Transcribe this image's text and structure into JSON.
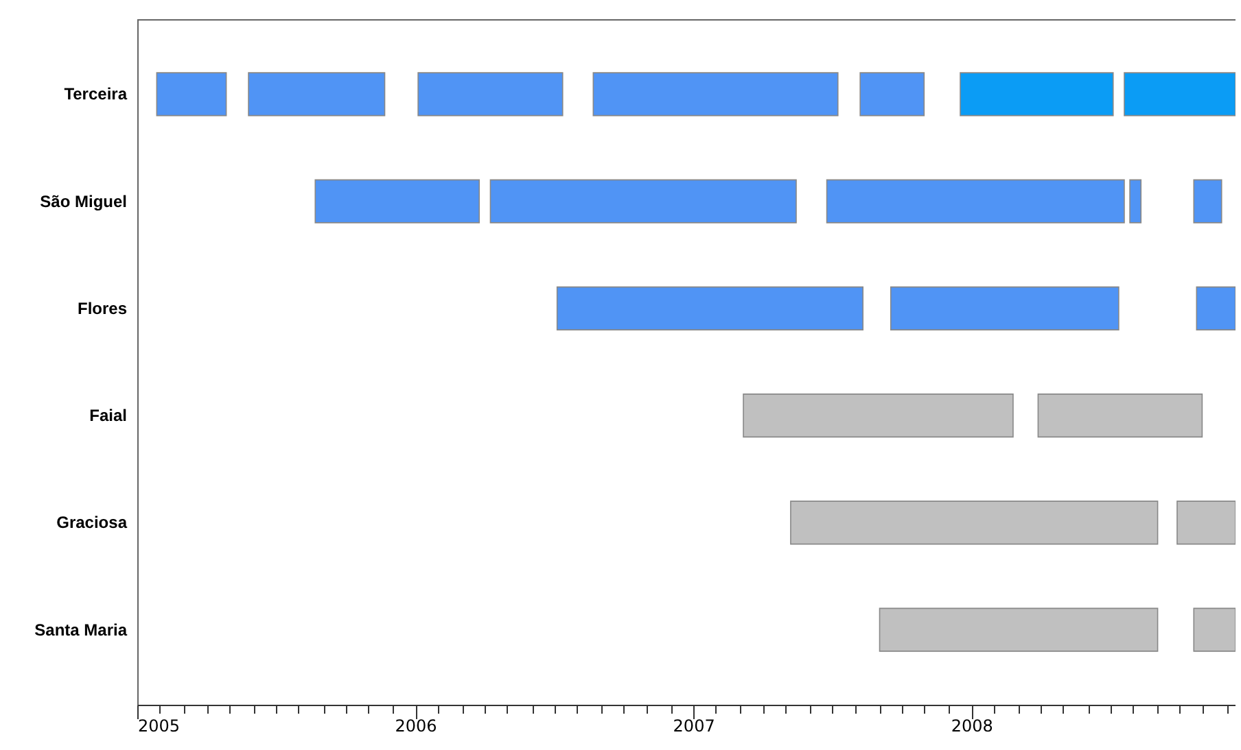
{
  "chart_data": {
    "type": "bar",
    "orientation": "horizontal",
    "categories": [
      "Terceira",
      "São Miguel",
      "Flores",
      "Faial",
      "Graciosa",
      "Santa Maria"
    ],
    "series": [
      {
        "base": [
          2005.07,
          2005.64,
          2006.51,
          2007.18,
          2007.35,
          2007.67
        ],
        "values": [
          0.25,
          0.59,
          1.1,
          0.97,
          1.32,
          1.0
        ],
        "colors": [
          "#5094f5",
          "#5094f5",
          "#5094f5",
          "#c0c0c0",
          "#c0c0c0",
          "#c0c0c0"
        ]
      },
      {
        "base": [
          2005.4,
          2006.27,
          2007.71,
          2008.24,
          2008.74,
          2008.8
        ],
        "values": [
          0.49,
          1.1,
          0.82,
          0.59,
          0.21,
          0.15
        ],
        "colors": [
          "#5094f5",
          "#5094f5",
          "#5094f5",
          "#c0c0c0",
          "#c0c0c0",
          "#c0c0c0"
        ]
      },
      {
        "base": [
          2006.01,
          2007.48,
          2008.81,
          null,
          null,
          null
        ],
        "values": [
          0.52,
          1.07,
          0.14,
          null,
          null,
          null
        ],
        "colors": [
          "#5094f5",
          "#5094f5",
          "#5094f5",
          null,
          null,
          null
        ]
      },
      {
        "base": [
          2006.64,
          2008.57,
          null,
          null,
          null,
          null
        ],
        "values": [
          0.88,
          0.04,
          null,
          null,
          null,
          null
        ],
        "colors": [
          "#5094f5",
          "#5094f5",
          null,
          null,
          null,
          null
        ]
      },
      {
        "base": [
          2007.6,
          2008.8,
          null,
          null,
          null,
          null
        ],
        "values": [
          0.23,
          0.1,
          null,
          null,
          null,
          null
        ],
        "colors": [
          "#5094f5",
          "#5094f5",
          null,
          null,
          null,
          null
        ]
      },
      {
        "base": [
          2007.96,
          null,
          null,
          null,
          null,
          null
        ],
        "values": [
          0.55,
          null,
          null,
          null,
          null,
          null
        ],
        "colors": [
          "#0b9cf5",
          null,
          null,
          null,
          null,
          null
        ]
      },
      {
        "base": [
          2008.55,
          null,
          null,
          null,
          null,
          null
        ],
        "values": [
          0.4,
          null,
          null,
          null,
          null,
          null
        ],
        "colors": [
          "#0b9cf5",
          null,
          null,
          null,
          null,
          null
        ]
      }
    ],
    "xlim": [
      2005,
      2008.95
    ],
    "xticks": [
      2005,
      {
        "value": 2005.08,
        "label": null
      },
      {
        "value": 2005.17,
        "label": null
      },
      {
        "value": 2005.25,
        "label": null
      },
      {
        "value": 2005.33,
        "label": null
      },
      {
        "value": 2005.42,
        "label": null
      },
      {
        "value": 2005.5,
        "label": null
      },
      {
        "value": 2005.58,
        "label": null
      },
      {
        "value": 2005.67,
        "label": null
      },
      {
        "value": 2005.75,
        "label": null
      },
      {
        "value": 2005.83,
        "label": null
      },
      {
        "value": 2005.92,
        "label": null
      },
      2006,
      {
        "value": 2006.08,
        "label": null
      },
      {
        "value": 2006.17,
        "label": null
      },
      {
        "value": 2006.25,
        "label": null
      },
      {
        "value": 2006.33,
        "label": null
      },
      {
        "value": 2006.42,
        "label": null
      },
      {
        "value": 2006.5,
        "label": null
      },
      {
        "value": 2006.58,
        "label": null
      },
      {
        "value": 2006.67,
        "label": null
      },
      {
        "value": 2006.75,
        "label": null
      },
      {
        "value": 2006.83,
        "label": null
      },
      {
        "value": 2006.92,
        "label": null
      },
      2007,
      {
        "value": 2007.08,
        "label": null
      },
      {
        "value": 2007.17,
        "label": null
      },
      {
        "value": 2007.25,
        "label": null
      },
      {
        "value": 2007.33,
        "label": null
      },
      {
        "value": 2007.42,
        "label": null
      },
      {
        "value": 2007.5,
        "label": null
      },
      {
        "value": 2007.58,
        "label": null
      },
      {
        "value": 2007.67,
        "label": null
      },
      {
        "value": 2007.75,
        "label": null
      },
      {
        "value": 2007.83,
        "label": null
      },
      {
        "value": 2007.92,
        "label": null
      },
      2008,
      {
        "value": 2008.08,
        "label": null
      },
      {
        "value": 2008.17,
        "label": null
      },
      {
        "value": 2008.25,
        "label": null
      },
      {
        "value": 2008.33,
        "label": null
      },
      {
        "value": 2008.42,
        "label": null
      },
      {
        "value": 2008.5,
        "label": null
      },
      {
        "value": 2008.58,
        "label": null
      },
      {
        "value": 2008.67,
        "label": null
      },
      {
        "value": 2008.75,
        "label": null
      },
      {
        "value": 2008.83,
        "label": null
      },
      {
        "value": 2008.92,
        "label": null
      }
    ],
    "grid": false
  }
}
